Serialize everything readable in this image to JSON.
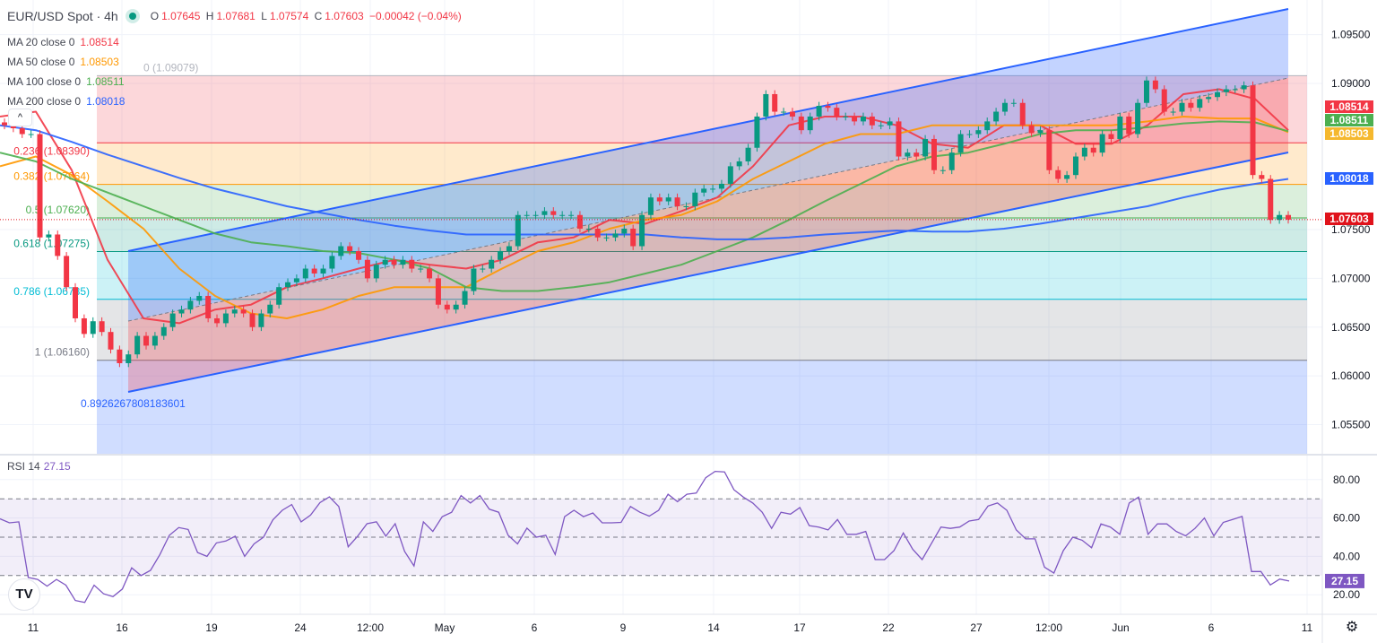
{
  "header": {
    "symbol": "EUR/USD Spot · 4h",
    "open_label": "O",
    "open": "1.07645",
    "high_label": "H",
    "high": "1.07681",
    "low_label": "L",
    "low": "1.07574",
    "close_label": "C",
    "close": "1.07603",
    "change": "−0.00042 (−0.04%)"
  },
  "moving_averages": [
    {
      "label": "MA 20 close 0",
      "value": "1.08514",
      "color": "#f23645"
    },
    {
      "label": "MA 50 close 0",
      "value": "1.08503",
      "color": "#ff9800"
    },
    {
      "label": "MA 100 close 0",
      "value": "1.08511",
      "color": "#4caf50"
    },
    {
      "label": "MA 200 close 0",
      "value": "1.08018",
      "color": "#2962ff"
    }
  ],
  "rsi_legend": {
    "label": "RSI 14",
    "value": "27.15"
  },
  "icons": {
    "collapse": "chevron-up-icon",
    "logo": "tradingview-logo",
    "settings": "gear-icon"
  },
  "collapse_glyph": "^",
  "logo_text": "TV",
  "settings_glyph": "⚙",
  "chart_data": [
    {
      "type": "candlestick",
      "title": "EUR/USD Spot · 4h",
      "ylim": [
        1.0515,
        1.0983
      ],
      "y_ticks": [
        "1.09500",
        "1.09000",
        "1.07500",
        "1.07000",
        "1.06500",
        "1.06000",
        "1.05500"
      ],
      "y_tick_values": [
        1.095,
        1.09,
        1.075,
        1.07,
        1.065,
        1.06,
        1.055
      ],
      "x_ticks": [
        "11",
        "16",
        "19",
        "24",
        "12:00",
        "May",
        "6",
        "9",
        "14",
        "17",
        "22",
        "27",
        "12:00",
        "Jun",
        "6",
        "11"
      ],
      "grid": true,
      "colors": {
        "up": "#089981",
        "down": "#f23645"
      },
      "first_open": 1.086,
      "closes": [
        1.0857,
        1.0854,
        1.0848,
        1.0848,
        1.0742,
        1.0745,
        1.0723,
        1.0691,
        1.0659,
        1.0643,
        1.0656,
        1.0645,
        1.0627,
        1.0613,
        1.0622,
        1.0641,
        1.0631,
        1.0641,
        1.065,
        1.0664,
        1.0668,
        1.0677,
        1.0682,
        1.0659,
        1.0654,
        1.0664,
        1.0668,
        1.0664,
        1.065,
        1.0664,
        1.0673,
        1.0691,
        1.0696,
        1.07,
        1.071,
        1.0705,
        1.071,
        1.0723,
        1.0733,
        1.0728,
        1.0719,
        1.07,
        1.0714,
        1.0719,
        1.0714,
        1.0719,
        1.071,
        1.071,
        1.07,
        1.0673,
        1.0668,
        1.0673,
        1.0687,
        1.071,
        1.071,
        1.0719,
        1.0728,
        1.0733,
        1.0765,
        1.0765,
        1.0765,
        1.0769,
        1.0765,
        1.0765,
        1.0765,
        1.0751,
        1.0751,
        1.0742,
        1.0742,
        1.0746,
        1.0751,
        1.0733,
        1.0765,
        1.0783,
        1.0779,
        1.0783,
        1.0774,
        1.0774,
        1.0788,
        1.0792,
        1.0792,
        1.0797,
        1.0815,
        1.082,
        1.0834,
        1.0866,
        1.0889,
        1.0871,
        1.0871,
        1.0866,
        1.0852,
        1.0866,
        1.0877,
        1.0875,
        1.0866,
        1.0866,
        1.0861,
        1.0866,
        1.0857,
        1.0857,
        1.0861,
        1.0825,
        1.0829,
        1.0825,
        1.0843,
        1.0811,
        1.0811,
        1.0829,
        1.0848,
        1.0848,
        1.0852,
        1.0861,
        1.0871,
        1.088,
        1.088,
        1.0857,
        1.0849,
        1.0852,
        1.0811,
        1.0802,
        1.0806,
        1.0825,
        1.0834,
        1.0829,
        1.0848,
        1.0843,
        1.0866,
        1.0848,
        1.088,
        1.0903,
        1.0894,
        1.0871,
        1.0871,
        1.088,
        1.0875,
        1.0884,
        1.0886,
        1.0891,
        1.0894,
        1.0894,
        1.0898,
        1.0806,
        1.0802,
        1.076,
        1.0765,
        1.07603
      ],
      "series": [
        {
          "name": "MA 20 close 0",
          "color": "#f23645",
          "values": [
            1.0866,
            1.0871,
            1.0811,
            1.0719,
            1.0659,
            1.0654,
            1.0668,
            1.0673,
            1.0691,
            1.07,
            1.071,
            1.0719,
            1.0714,
            1.071,
            1.0719,
            1.0737,
            1.0742,
            1.076,
            1.0756,
            1.0769,
            1.0783,
            1.0815,
            1.0857,
            1.0866,
            1.0866,
            1.0857,
            1.0838,
            1.0834,
            1.0857,
            1.0857,
            1.0838,
            1.0838,
            1.0857,
            1.0889,
            1.0894,
            1.0884,
            1.0852
          ]
        },
        {
          "name": "MA 50 close 0",
          "color": "#ff9800",
          "values": [
            1.0815,
            1.0825,
            1.0806,
            1.0779,
            1.0751,
            1.071,
            1.0682,
            1.0664,
            1.0659,
            1.0668,
            1.0682,
            1.0691,
            1.0691,
            1.0691,
            1.071,
            1.0728,
            1.0737,
            1.0751,
            1.076,
            1.0765,
            1.0779,
            1.0802,
            1.082,
            1.0838,
            1.0848,
            1.0848,
            1.0857,
            1.0857,
            1.0857,
            1.0857,
            1.0857,
            1.0857,
            1.0861,
            1.0866,
            1.0864,
            1.0864,
            1.085
          ]
        },
        {
          "name": "MA 100 close 0",
          "color": "#4caf50",
          "values": [
            1.0829,
            1.082,
            1.0802,
            1.0788,
            1.0774,
            1.076,
            1.0746,
            1.0737,
            1.0733,
            1.0728,
            1.0726,
            1.0719,
            1.071,
            1.0691,
            1.0687,
            1.0687,
            1.0691,
            1.0696,
            1.0705,
            1.0714,
            1.0728,
            1.0742,
            1.076,
            1.0779,
            1.0797,
            1.0815,
            1.0825,
            1.0829,
            1.0838,
            1.0848,
            1.0852,
            1.0852,
            1.0855,
            1.0859,
            1.0861,
            1.086,
            1.0851
          ]
        },
        {
          "name": "MA 200 close 0",
          "color": "#2962ff",
          "values": [
            1.0857,
            1.0852,
            1.084,
            1.0827,
            1.0815,
            1.0803,
            1.0792,
            1.0783,
            1.0774,
            1.0767,
            1.076,
            1.0754,
            1.0749,
            1.0745,
            1.0745,
            1.0745,
            1.0745,
            1.0745,
            1.0745,
            1.0742,
            1.074,
            1.074,
            1.0742,
            1.0745,
            1.0747,
            1.0749,
            1.0748,
            1.0748,
            1.0751,
            1.0756,
            1.0762,
            1.0768,
            1.0774,
            1.0783,
            1.0791,
            1.0797,
            1.0802
          ]
        }
      ],
      "price_tags": [
        {
          "value": "1.08514",
          "price": 1.08514,
          "color": "#f23645"
        },
        {
          "value": "1.08511",
          "price": 1.08511,
          "color": "#4caf50"
        },
        {
          "value": "1.08503",
          "price": 1.08503,
          "color": "#f5b82e"
        },
        {
          "value": "1.08018",
          "price": 1.08018,
          "color": "#2962ff"
        },
        {
          "value": "1.07603",
          "price": 1.07603,
          "color": "#e0121b"
        }
      ],
      "fibonacci": [
        {
          "level": "0",
          "price": 1.09079,
          "label": "0 (1.09079)",
          "color": "#b2b5be",
          "fill": "rgba(242,54,69,0.2)"
        },
        {
          "level": "0.236",
          "price": 1.0839,
          "label": "0.236 (1.08390)",
          "color": "#f23645",
          "fill": "rgba(255,152,0,0.2)"
        },
        {
          "level": "0.382",
          "price": 1.07964,
          "label": "0.382 (1.07964)",
          "color": "#ff9800",
          "fill": "rgba(76,175,80,0.2)"
        },
        {
          "level": "0.5",
          "price": 1.0762,
          "label": "0.5 (1.07620)",
          "color": "#4caf50",
          "fill": "rgba(8,153,129,0.2)"
        },
        {
          "level": "0.618",
          "price": 1.07275,
          "label": "0.618 (1.07275)",
          "color": "#089981",
          "fill": "rgba(0,188,212,0.2)"
        },
        {
          "level": "0.786",
          "price": 1.06785,
          "label": "0.786 (1.06785)",
          "color": "#00bcd4",
          "fill": "rgba(120,123,134,0.2)"
        },
        {
          "level": "1",
          "price": 1.0616,
          "label": "1 (1.06160)",
          "color": "#787b86",
          "fill": "rgba(41,98,255,0.22)"
        }
      ],
      "regression_channel_label": "0.8926267808183601"
    },
    {
      "type": "line",
      "title": "RSI 14",
      "ylim": [
        10,
        90
      ],
      "y_ticks": [
        "80.00",
        "60.00",
        "40.00",
        "20.00"
      ],
      "y_tick_values": [
        80,
        60,
        40,
        20
      ],
      "bands": [
        70,
        50,
        30
      ],
      "color": "#7e57c2",
      "last_value": "27.15",
      "values": [
        59.6,
        57.5,
        58,
        29,
        28,
        24.5,
        28,
        25,
        17,
        16,
        25,
        20.5,
        19,
        23,
        34,
        30,
        32.7,
        41,
        51,
        55,
        54,
        42,
        40,
        47,
        48,
        50.5,
        40,
        46.5,
        50,
        59,
        64,
        67,
        58,
        61.5,
        68,
        71,
        66,
        45,
        50.5,
        57,
        58,
        50.5,
        57,
        42.6,
        35,
        58,
        53,
        60.7,
        63,
        71.7,
        67.8,
        71.7,
        64.6,
        63,
        51,
        46.5,
        54.7,
        50,
        51,
        41,
        60.7,
        64,
        60.7,
        62.6,
        57.5,
        57.5,
        57.7,
        66,
        63,
        61,
        64,
        72.4,
        68.5,
        72.4,
        73,
        81,
        84.3,
        84,
        74.7,
        70.9,
        67.8,
        63,
        54.6,
        63,
        62,
        65.4,
        56,
        55.3,
        53.8,
        59.2,
        51.5,
        51.5,
        53,
        38.3,
        38.3,
        43,
        52.2,
        43.7,
        38.3,
        46.8,
        55.3,
        54.6,
        55.3,
        58.4,
        59.2,
        66.2,
        67.8,
        64,
        53.8,
        49.1,
        49.1,
        34.4,
        31.3,
        43,
        50,
        48.4,
        44.5,
        56.9,
        55.3,
        51.5,
        67.8,
        70.9,
        51.5,
        56.9,
        56.9,
        53,
        50.7,
        54.6,
        60,
        50.7,
        57.7,
        59.2,
        60.8,
        32.1,
        32.1,
        25.1,
        28.2,
        27.15
      ]
    }
  ]
}
